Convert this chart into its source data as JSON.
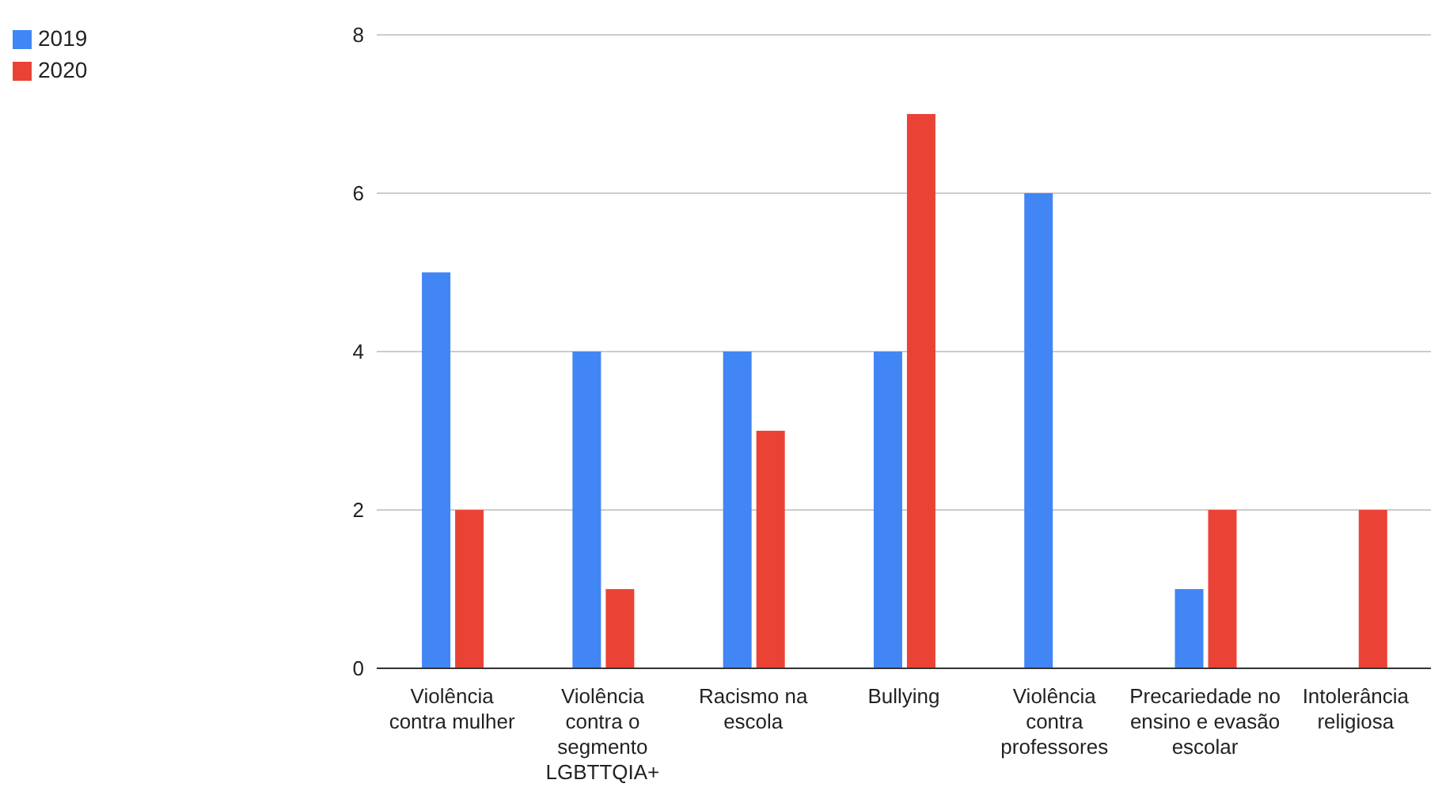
{
  "chart_data": {
    "type": "bar",
    "categories": [
      "Violência contra mulher",
      "Violência contra o segmento LGBTTQIA+",
      "Racismo na escola",
      "Bullying",
      "Violência contra professores",
      "Precariedade no ensino e evasão escolar",
      "Intolerância religiosa"
    ],
    "series": [
      {
        "name": "2019",
        "color": "#4285f4",
        "values": [
          5,
          4,
          4,
          4,
          6,
          1,
          0
        ]
      },
      {
        "name": "2020",
        "color": "#ea4335",
        "values": [
          2,
          1,
          3,
          7,
          0,
          2,
          2
        ]
      }
    ],
    "ylim": [
      0,
      8
    ],
    "yticks": [
      0,
      2,
      4,
      6,
      8
    ],
    "grid": "y",
    "legend": "top left"
  }
}
